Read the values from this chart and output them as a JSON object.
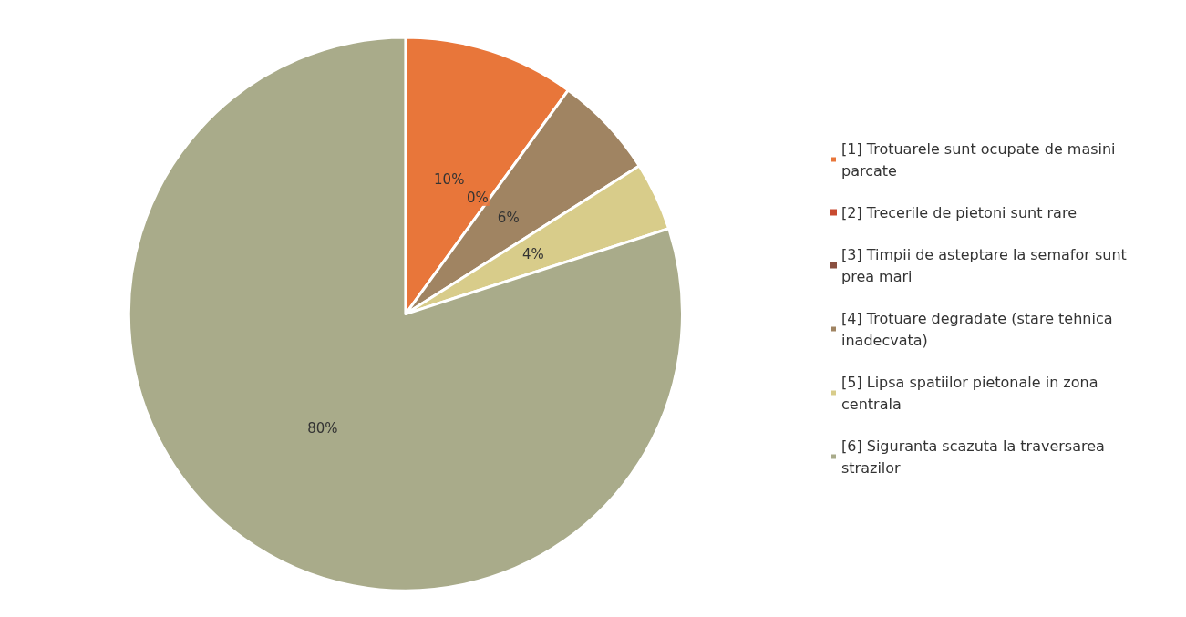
{
  "chart_data": {
    "type": "pie",
    "categories": [
      "[1] Trotuarele sunt ocupate de masini parcate",
      "[2] Trecerile de pietoni sunt rare",
      "[3] Timpii de asteptare la semafor sunt prea mari",
      "[4] Trotuare degradate (stare tehnica inadecvata)",
      "[5] Lipsa spatiilor pietonale in zona centrala",
      "[6] Siguranta scazuta la traversarea strazilor"
    ],
    "values": [
      10,
      0,
      0,
      6,
      4,
      80
    ],
    "colors": [
      "#e8763a",
      "#c84a30",
      "#8a5040",
      "#a08462",
      "#d8cc8a",
      "#a9ab8a"
    ],
    "value_labels": [
      "10%",
      "0%",
      null,
      "6%",
      "4%",
      "80%"
    ],
    "legend": "right"
  }
}
